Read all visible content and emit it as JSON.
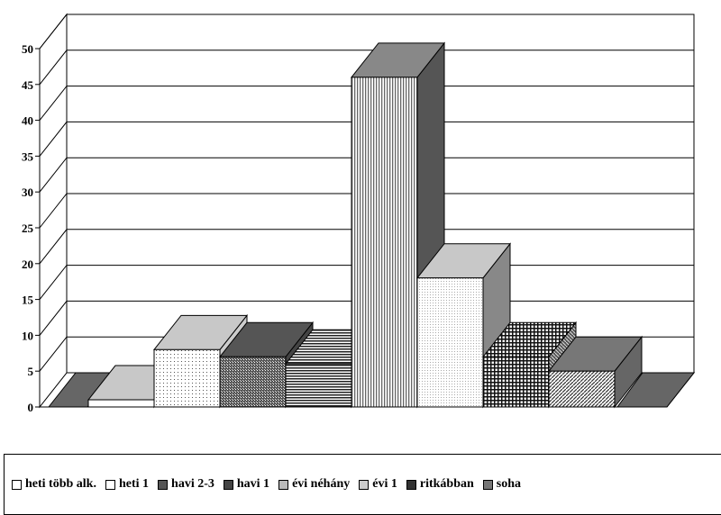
{
  "chart_data": {
    "type": "bar",
    "categories": [
      "heti több alk.",
      "heti 1",
      "havi 2-3",
      "havi 1",
      "évi néhány",
      "évi 1",
      "ritkábban",
      "soha"
    ],
    "values": [
      1,
      8,
      7,
      6,
      46,
      18,
      7,
      5
    ],
    "ylim": [
      0,
      50
    ],
    "yticks": [
      "0",
      "5",
      "10",
      "15",
      "20",
      "25",
      "30",
      "35",
      "40",
      "45",
      "50"
    ],
    "grid": true,
    "legend_position": "bottom",
    "title": "",
    "xlabel": "",
    "ylabel": ""
  },
  "legend": {
    "items": [
      {
        "label": "heti több alk.",
        "color": "#ffffff"
      },
      {
        "label": "heti 1",
        "color": "#ffffff"
      },
      {
        "label": "havi 2-3",
        "color": "#555555"
      },
      {
        "label": "havi 1",
        "color": "#444444"
      },
      {
        "label": "évi néhány",
        "color": "#bbbbbb"
      },
      {
        "label": "évi 1",
        "color": "#cccccc"
      },
      {
        "label": "ritkábban",
        "color": "#333333"
      },
      {
        "label": "soha",
        "color": "#777777"
      }
    ]
  }
}
